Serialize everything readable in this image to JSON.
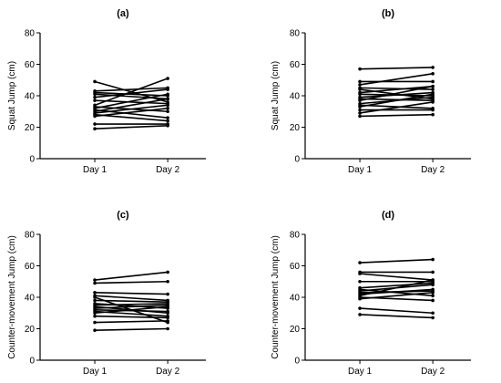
{
  "chart_data": [
    {
      "type": "line",
      "title": "(a)",
      "ylabel": "Squat Jump (cm)",
      "xlabel": "",
      "categories": [
        "Day 1",
        "Day 2"
      ],
      "ylim": [
        0,
        80
      ],
      "yticks": [
        0,
        20,
        40,
        60,
        80
      ],
      "grid": false,
      "series": [
        {
          "values": [
            49,
            36
          ]
        },
        {
          "values": [
            43,
            45
          ]
        },
        {
          "values": [
            42,
            40
          ]
        },
        {
          "values": [
            41,
            38
          ]
        },
        {
          "values": [
            39,
            44
          ]
        },
        {
          "values": [
            37,
            35
          ]
        },
        {
          "values": [
            34,
            51
          ]
        },
        {
          "values": [
            33,
            30
          ]
        },
        {
          "values": [
            32,
            41
          ]
        },
        {
          "values": [
            31,
            26
          ]
        },
        {
          "values": [
            30,
            38
          ]
        },
        {
          "values": [
            29,
            34
          ]
        },
        {
          "values": [
            28,
            24
          ]
        },
        {
          "values": [
            27,
            32
          ]
        },
        {
          "values": [
            22,
            22
          ]
        },
        {
          "values": [
            19,
            21
          ]
        }
      ]
    },
    {
      "type": "line",
      "title": "(b)",
      "ylabel": "Squat Jump (cm)",
      "xlabel": "",
      "categories": [
        "Day 1",
        "Day 2"
      ],
      "ylim": [
        0,
        80
      ],
      "yticks": [
        0,
        20,
        40,
        60,
        80
      ],
      "grid": false,
      "series": [
        {
          "values": [
            57,
            58
          ]
        },
        {
          "values": [
            49,
            49
          ]
        },
        {
          "values": [
            47,
            54
          ]
        },
        {
          "values": [
            45,
            44
          ]
        },
        {
          "values": [
            44,
            38
          ]
        },
        {
          "values": [
            42,
            46
          ]
        },
        {
          "values": [
            41,
            40
          ]
        },
        {
          "values": [
            39,
            42
          ]
        },
        {
          "values": [
            38,
            37
          ]
        },
        {
          "values": [
            37,
            46
          ]
        },
        {
          "values": [
            35,
            39
          ]
        },
        {
          "values": [
            34,
            32
          ]
        },
        {
          "values": [
            33,
            41
          ]
        },
        {
          "values": [
            31,
            31
          ]
        },
        {
          "values": [
            29,
            36
          ]
        },
        {
          "values": [
            27,
            28
          ]
        }
      ]
    },
    {
      "type": "line",
      "title": "(c)",
      "ylabel": "Counter-movement Jump (cm)",
      "xlabel": "",
      "categories": [
        "Day 1",
        "Day 2"
      ],
      "ylim": [
        0,
        80
      ],
      "yticks": [
        0,
        20,
        40,
        60,
        80
      ],
      "grid": false,
      "series": [
        {
          "values": [
            51,
            56
          ]
        },
        {
          "values": [
            49,
            50
          ]
        },
        {
          "values": [
            43,
            42
          ]
        },
        {
          "values": [
            41,
            38
          ]
        },
        {
          "values": [
            40,
            24
          ]
        },
        {
          "values": [
            38,
            37
          ]
        },
        {
          "values": [
            36,
            33
          ]
        },
        {
          "values": [
            35,
            36
          ]
        },
        {
          "values": [
            34,
            30
          ]
        },
        {
          "values": [
            33,
            35
          ]
        },
        {
          "values": [
            32,
            31
          ]
        },
        {
          "values": [
            31,
            28
          ]
        },
        {
          "values": [
            30,
            34
          ]
        },
        {
          "values": [
            28,
            27
          ]
        },
        {
          "values": [
            24,
            25
          ]
        },
        {
          "values": [
            19,
            20
          ]
        }
      ]
    },
    {
      "type": "line",
      "title": "(d)",
      "ylabel": "Counter-movement Jump (cm)",
      "xlabel": "",
      "categories": [
        "Day 1",
        "Day 2"
      ],
      "ylim": [
        0,
        80
      ],
      "yticks": [
        0,
        20,
        40,
        60,
        80
      ],
      "grid": false,
      "series": [
        {
          "values": [
            62,
            64
          ]
        },
        {
          "values": [
            56,
            56
          ]
        },
        {
          "values": [
            55,
            51
          ]
        },
        {
          "values": [
            50,
            50
          ]
        },
        {
          "values": [
            46,
            49
          ]
        },
        {
          "values": [
            45,
            41
          ]
        },
        {
          "values": [
            44,
            48
          ]
        },
        {
          "values": [
            43,
            44
          ]
        },
        {
          "values": [
            42,
            45
          ]
        },
        {
          "values": [
            41,
            51
          ]
        },
        {
          "values": [
            40,
            38
          ]
        },
        {
          "values": [
            39,
            43
          ]
        },
        {
          "values": [
            33,
            30
          ]
        },
        {
          "values": [
            29,
            27
          ]
        }
      ]
    }
  ]
}
